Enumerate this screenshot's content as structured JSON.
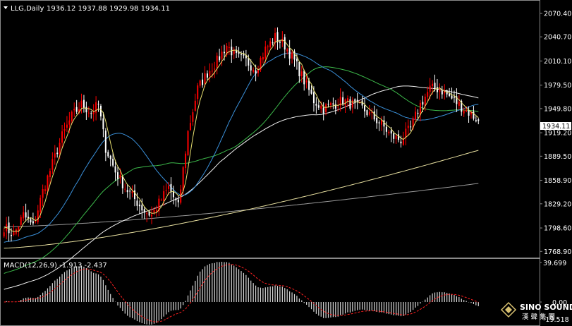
{
  "header": {
    "symbol": "LLG,Daily",
    "ohlc": "1936.12 1937.88 1929.98 1934.11",
    "dropdown_icon": "triangle-down-icon"
  },
  "price_axis": {
    "labels": [
      "2070.40",
      "2040.70",
      "2010.10",
      "1979.50",
      "1949.80",
      "1919.20",
      "1889.50",
      "1858.90",
      "1829.20",
      "1798.60",
      "1768.90"
    ],
    "current_price": "1934.11"
  },
  "macd": {
    "title": "MACD(12,26,9) -1.913 -2.437",
    "axis_labels": [
      "39.699",
      "0.00",
      "-19.518"
    ]
  },
  "watermark": {
    "name": "SINO SOUND",
    "sub": "漢 聲 集 團",
    "logo_icon": "diamond-logo-icon"
  },
  "colors": {
    "background": "#000000",
    "candle_up": "#ff0000",
    "candle_down": "#ffffff",
    "ma_fast": "#e8e070",
    "ma_mid": "#3a8fd8",
    "ma_slow": "#3cb84a",
    "ma_white": "#f0f0f0",
    "ma_long_yellow": "#e8e0a0",
    "ma_long_gray": "#9a9a9a",
    "macd_hist": "#d8d8d8",
    "macd_signal": "#ff2020"
  },
  "chart_data": {
    "type": "candlestick",
    "title": "LLG,Daily",
    "ylim": [
      1762,
      2082
    ],
    "last": {
      "open": 1936.12,
      "high": 1937.88,
      "low": 1929.98,
      "close": 1934.11
    },
    "control_points": [
      [
        0,
        1800
      ],
      [
        4,
        1790
      ],
      [
        8,
        1815
      ],
      [
        12,
        1800
      ],
      [
        16,
        1845
      ],
      [
        20,
        1880
      ],
      [
        24,
        1915
      ],
      [
        28,
        1940
      ],
      [
        32,
        1955
      ],
      [
        36,
        1945
      ],
      [
        39,
        1955
      ],
      [
        42,
        1900
      ],
      [
        46,
        1870
      ],
      [
        50,
        1850
      ],
      [
        54,
        1835
      ],
      [
        58,
        1820
      ],
      [
        61,
        1815
      ],
      [
        64,
        1830
      ],
      [
        68,
        1850
      ],
      [
        72,
        1825
      ],
      [
        76,
        1920
      ],
      [
        80,
        1975
      ],
      [
        84,
        1995
      ],
      [
        88,
        2010
      ],
      [
        92,
        2030
      ],
      [
        96,
        2015
      ],
      [
        100,
        2010
      ],
      [
        104,
        2000
      ],
      [
        108,
        2025
      ],
      [
        112,
        2040
      ],
      [
        116,
        2030
      ],
      [
        120,
        2010
      ],
      [
        124,
        1985
      ],
      [
        128,
        1960
      ],
      [
        132,
        1950
      ],
      [
        136,
        1955
      ],
      [
        140,
        1960
      ],
      [
        144,
        1955
      ],
      [
        148,
        1950
      ],
      [
        152,
        1940
      ],
      [
        156,
        1930
      ],
      [
        160,
        1915
      ],
      [
        164,
        1910
      ],
      [
        168,
        1925
      ],
      [
        172,
        1955
      ],
      [
        176,
        1975
      ],
      [
        180,
        1975
      ],
      [
        184,
        1965
      ],
      [
        188,
        1955
      ],
      [
        192,
        1945
      ],
      [
        196,
        1935
      ]
    ]
  }
}
